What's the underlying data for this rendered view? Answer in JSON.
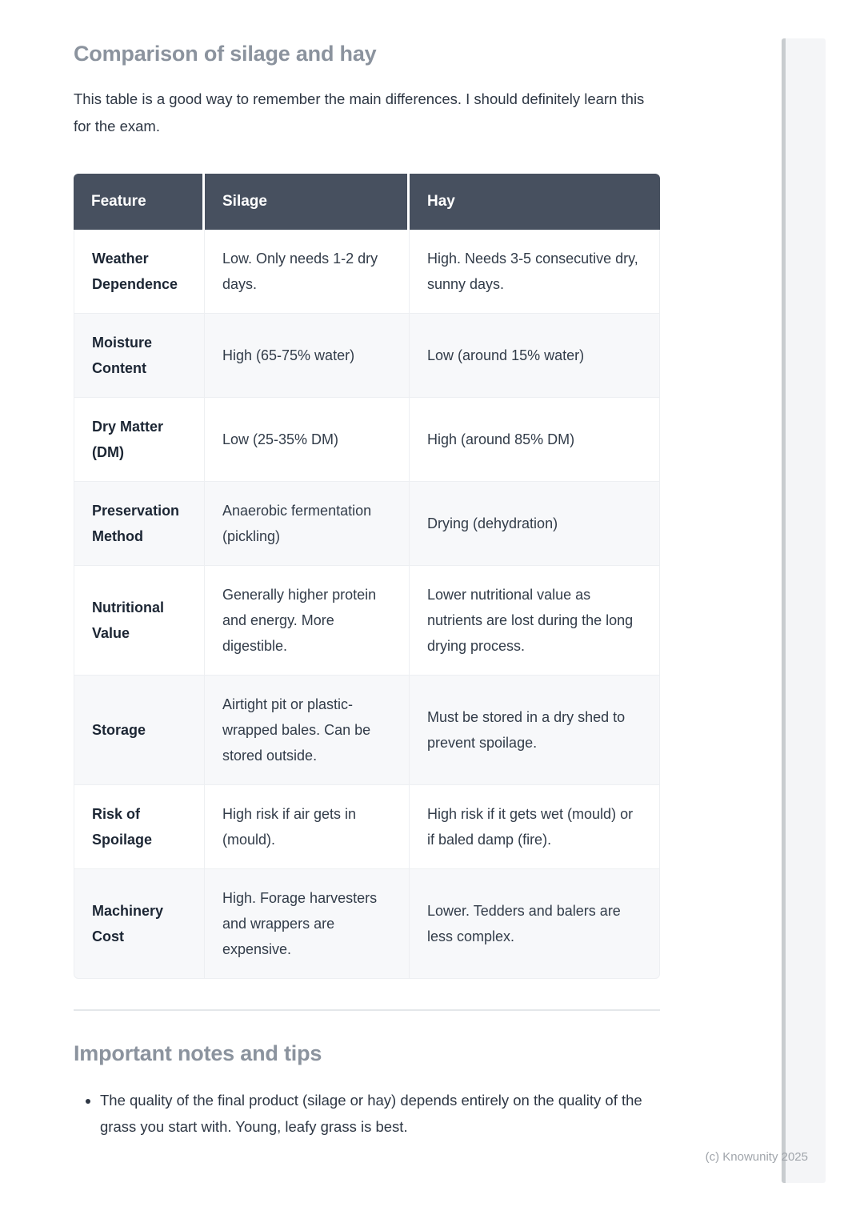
{
  "content": {
    "heading_comparison": "Comparison of silage and hay",
    "intro_paragraph": "This table is a good way to remember the main differences. I should definitely learn this for the exam.",
    "heading_notes": "Important notes and tips",
    "notes_bullets": [
      "The quality of the final product (silage or hay) depends entirely on the quality of the grass you start with. Young, leafy grass is best."
    ]
  },
  "comparison_table": {
    "headers": [
      "Feature",
      "Silage",
      "Hay"
    ],
    "rows": [
      {
        "feature": "Weather Dependence",
        "silage": "Low. Only needs 1-2 dry days.",
        "hay": "High. Needs 3-5 consecutive dry, sunny days."
      },
      {
        "feature": "Moisture Content",
        "silage": "High (65-75% water)",
        "hay": "Low (around 15% water)"
      },
      {
        "feature": "Dry Matter (DM)",
        "silage": "Low (25-35% DM)",
        "hay": "High (around 85% DM)"
      },
      {
        "feature": "Preservation Method",
        "silage": "Anaerobic fermentation (pickling)",
        "hay": "Drying (dehydration)"
      },
      {
        "feature": "Nutritional Value",
        "silage": "Generally higher protein and energy. More digestible.",
        "hay": "Lower nutritional value as nutrients are lost during the long drying process."
      },
      {
        "feature": "Storage",
        "silage": "Airtight pit or plastic-wrapped bales. Can be stored outside.",
        "hay": "Must be stored in a dry shed to prevent spoilage."
      },
      {
        "feature": "Risk of Spoilage",
        "silage": "High risk if air gets in (mould).",
        "hay": "High risk if it gets wet (mould) or if baled damp (fire)."
      },
      {
        "feature": "Machinery Cost",
        "silage": "High. Forage harvesters and wrappers are expensive.",
        "hay": "Lower. Tedders and balers are less complex."
      }
    ]
  },
  "footer": {
    "watermark": "(c) Knowunity 2025"
  },
  "colors": {
    "table_header_bg": "#47505f",
    "table_header_text": "#ffffff",
    "row_alt_bg": "#f7f8fa",
    "heading_color": "#8b939e",
    "body_text": "#2e3744",
    "divider": "#e4e7ea",
    "watermark": "#a0a5ab",
    "scroll_panel_bg": "#f4f5f7",
    "scroll_panel_edge": "#c8cccf"
  }
}
